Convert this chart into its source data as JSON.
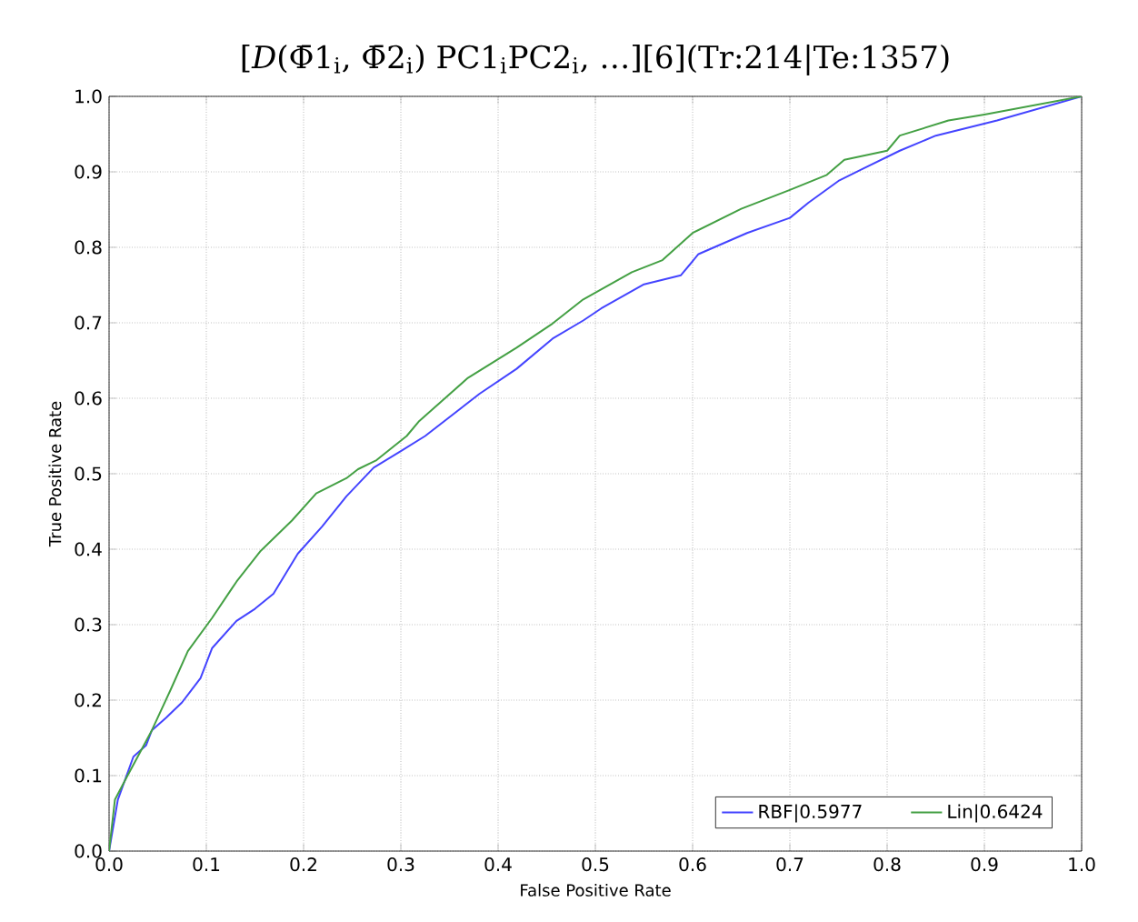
{
  "chart_data": {
    "type": "line",
    "title": "[*D*(Φ̄1$_{i}$, Φ̄2$_{i}$) PC1$_{i}$PC2$_{i}$, …][6](Tr:214|Te:1357)",
    "xlabel": "False Positive Rate",
    "ylabel": "True Positive Rate",
    "xlim": [
      0,
      1
    ],
    "ylim": [
      0,
      1
    ],
    "xticks": [
      {
        "value": 0,
        "label": "0.0"
      },
      {
        "value": 0.1,
        "label": "0.1"
      },
      {
        "value": 0.2,
        "label": "0.2"
      },
      {
        "value": 0.3,
        "label": "0.3"
      },
      {
        "value": 0.4,
        "label": "0.4"
      },
      {
        "value": 0.5,
        "label": "0.5"
      },
      {
        "value": 0.6,
        "label": "0.6"
      },
      {
        "value": 0.7,
        "label": "0.7"
      },
      {
        "value": 0.8,
        "label": "0.8"
      },
      {
        "value": 0.9,
        "label": "0.9"
      },
      {
        "value": 1,
        "label": "1.0"
      }
    ],
    "yticks": [
      {
        "value": 0,
        "label": "0.0"
      },
      {
        "value": 0.1,
        "label": "0.1"
      },
      {
        "value": 0.2,
        "label": "0.2"
      },
      {
        "value": 0.3,
        "label": "0.3"
      },
      {
        "value": 0.4,
        "label": "0.4"
      },
      {
        "value": 0.5,
        "label": "0.5"
      },
      {
        "value": 0.6,
        "label": "0.6"
      },
      {
        "value": 0.7,
        "label": "0.7"
      },
      {
        "value": 0.8,
        "label": "0.8"
      },
      {
        "value": 0.9,
        "label": "0.9"
      },
      {
        "value": 1,
        "label": "1.0"
      }
    ],
    "grid": true,
    "legend": "bottom right",
    "marker": "none",
    "line_style": "solid",
    "series": [
      {
        "name": "RBF|0.5977",
        "color": "#4444ff",
        "x": [
          0,
          0.009,
          0.025,
          0.038,
          0.044,
          0.059,
          0.075,
          0.094,
          0.106,
          0.131,
          0.15,
          0.169,
          0.194,
          0.219,
          0.244,
          0.272,
          0.3,
          0.325,
          0.381,
          0.419,
          0.456,
          0.4875,
          0.506,
          0.55,
          0.588,
          0.606,
          0.656,
          0.7,
          0.719,
          0.75,
          0.775,
          0.813,
          0.85,
          0.913,
          1
        ],
        "values": [
          0,
          0.068,
          0.125,
          0.14,
          0.16,
          0.177,
          0.197,
          0.229,
          0.269,
          0.305,
          0.321,
          0.341,
          0.394,
          0.43,
          0.47,
          0.508,
          0.53,
          0.55,
          0.606,
          0.639,
          0.679,
          0.703,
          0.719,
          0.751,
          0.763,
          0.791,
          0.819,
          0.839,
          0.859,
          0.888,
          0.904,
          0.928,
          0.948,
          0.968,
          1
        ]
      },
      {
        "name": "Lin|0.6424",
        "color": "#44a044",
        "x": [
          0,
          0.006,
          0.019,
          0.044,
          0.063,
          0.081,
          0.106,
          0.131,
          0.156,
          0.188,
          0.213,
          0.244,
          0.256,
          0.275,
          0.306,
          0.319,
          0.369,
          0.419,
          0.456,
          0.4875,
          0.5375,
          0.569,
          0.6,
          0.65,
          0.7,
          0.738,
          0.756,
          0.8,
          0.813,
          0.863,
          0.9,
          1
        ],
        "values": [
          0,
          0.068,
          0.1,
          0.16,
          0.213,
          0.265,
          0.309,
          0.357,
          0.398,
          0.438,
          0.474,
          0.494,
          0.506,
          0.518,
          0.55,
          0.57,
          0.627,
          0.667,
          0.699,
          0.731,
          0.767,
          0.783,
          0.819,
          0.851,
          0.876,
          0.896,
          0.916,
          0.928,
          0.948,
          0.968,
          0.976,
          1
        ]
      }
    ]
  }
}
